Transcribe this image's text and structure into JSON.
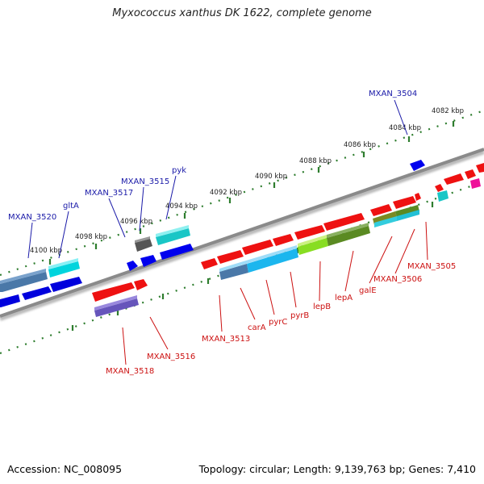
{
  "title": "Myxococcus xanthus DK 1622, complete genome",
  "footer": {
    "accession": "Accession: NC_008095",
    "summary": "Topology: circular; Length: 9,139,763 bp; Genes: 7,410"
  },
  "colors": {
    "label_top": "#1a1aa8",
    "label_bottom": "#cc1111",
    "tick": "#2e7d2e",
    "backbone": "#8a8a8a"
  },
  "scale_labels": [
    "4100 kbp",
    "4098 kbp",
    "4096 kbp",
    "4094 kbp",
    "4092 kbp",
    "4090 kbp",
    "4088 kbp",
    "4086 kbp",
    "4084 kbp",
    "4082 kbp"
  ],
  "gene_labels_top": [
    "MXAN_3520",
    "gltA",
    "MXAN_3517",
    "MXAN_3515",
    "pyk",
    "MXAN_3504"
  ],
  "gene_labels_bottom": [
    "MXAN_3518",
    "MXAN_3516",
    "MXAN_3513",
    "carA",
    "pyrC",
    "pyrB",
    "lepB",
    "lepA",
    "galE",
    "MXAN_3506",
    "MXAN_3505"
  ]
}
